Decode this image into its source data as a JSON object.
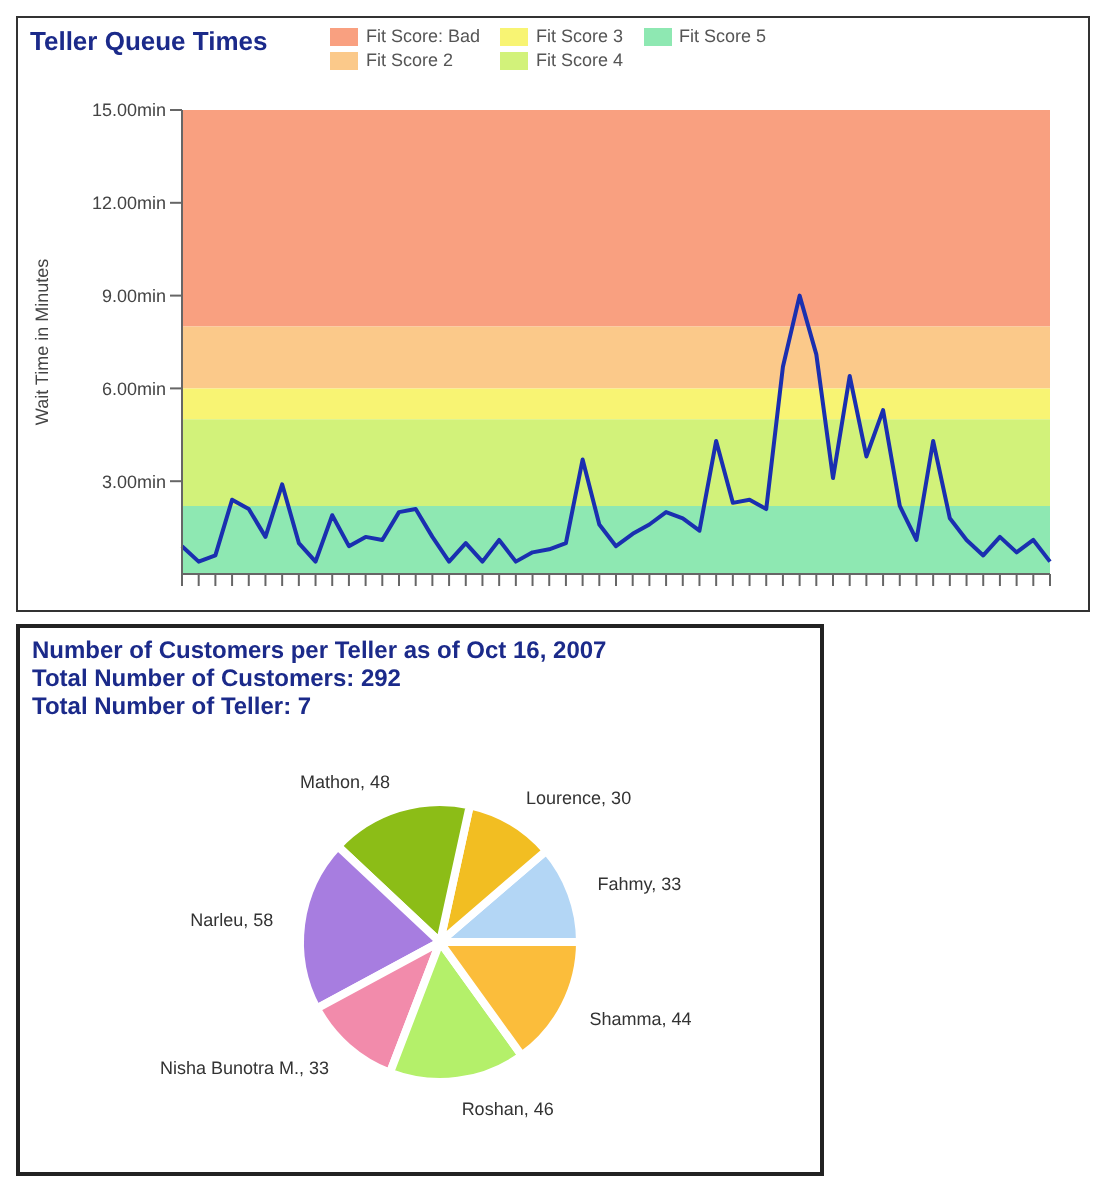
{
  "chart_data": [
    {
      "type": "line",
      "title": "Teller Queue Times",
      "ylabel": "Wait Time in Minutes",
      "categories": [
        null,
        null,
        null,
        null,
        null,
        null,
        null,
        null,
        null,
        null,
        null,
        null,
        null,
        null,
        null,
        null,
        null,
        null,
        null,
        null,
        null,
        null,
        null,
        null,
        null,
        null,
        null,
        null,
        null,
        null,
        null,
        null,
        null,
        null,
        null,
        null,
        null,
        null,
        null,
        null,
        null,
        null,
        null,
        null,
        null,
        null,
        null,
        null,
        null,
        null,
        null,
        null,
        null
      ],
      "series": [
        {
          "color": "#1a2fb0",
          "values": [
            0.9,
            0.4,
            0.6,
            2.4,
            2.1,
            1.2,
            2.9,
            1.0,
            0.4,
            1.9,
            0.9,
            1.2,
            1.1,
            2.0,
            2.1,
            1.2,
            0.4,
            1.0,
            0.4,
            1.1,
            0.4,
            0.7,
            0.8,
            1.0,
            3.7,
            1.6,
            0.9,
            1.3,
            1.6,
            2.0,
            1.8,
            1.4,
            4.3,
            2.3,
            2.4,
            2.1,
            6.7,
            9.0,
            7.1,
            3.1,
            6.4,
            3.8,
            5.3,
            2.2,
            1.1,
            4.3,
            1.8,
            1.1,
            0.6,
            1.2,
            0.7,
            1.1,
            0.4
          ]
        }
      ],
      "ylim": [
        0,
        15
      ],
      "yticks": [
        {
          "value": 3,
          "label": "3.00min"
        },
        {
          "value": 6,
          "label": "6.00min"
        },
        {
          "value": 9,
          "label": "9.00min"
        },
        {
          "value": 12,
          "label": "12.00min"
        },
        {
          "value": 15,
          "label": "15.00min"
        }
      ],
      "bands": [
        {
          "axis": "y",
          "from": 8,
          "to": 15,
          "label": "Fit Score: Bad",
          "color": "#f9a080"
        },
        {
          "axis": "y",
          "from": 6,
          "to": 8,
          "label": "Fit Score 2",
          "color": "#fbc98a"
        },
        {
          "axis": "y",
          "from": 5,
          "to": 6,
          "label": "Fit Score 3",
          "color": "#f8f473"
        },
        {
          "axis": "y",
          "from": 2.2,
          "to": 5,
          "label": "Fit Score 4",
          "color": "#d2f27a"
        },
        {
          "axis": "y",
          "from": 0,
          "to": 2.2,
          "label": "Fit Score 5",
          "color": "#8ee8b2"
        }
      ],
      "legend": "top",
      "marker": "none",
      "line_style": "solid"
    },
    {
      "type": "pie",
      "title": "Number of Customers per Teller as of Oct 16, 2007",
      "annotations": [
        "Total Number of Customers: 292",
        "Total Number of Teller: 7"
      ],
      "categories": [
        "Fahmy, 33",
        "Lourence, 30",
        "Mathon, 48",
        "Narleu, 58",
        "Nisha Bunotra M., 33",
        "Roshan, 46",
        "Shamma, 44"
      ],
      "values": [
        33,
        30,
        48,
        58,
        33,
        46,
        44
      ],
      "colors": [
        "#b3d6f5",
        "#f2be22",
        "#8cbd17",
        "#a77de0",
        "#f28bab",
        "#b4f06a",
        "#fbbd3b"
      ],
      "legend": false
    }
  ]
}
